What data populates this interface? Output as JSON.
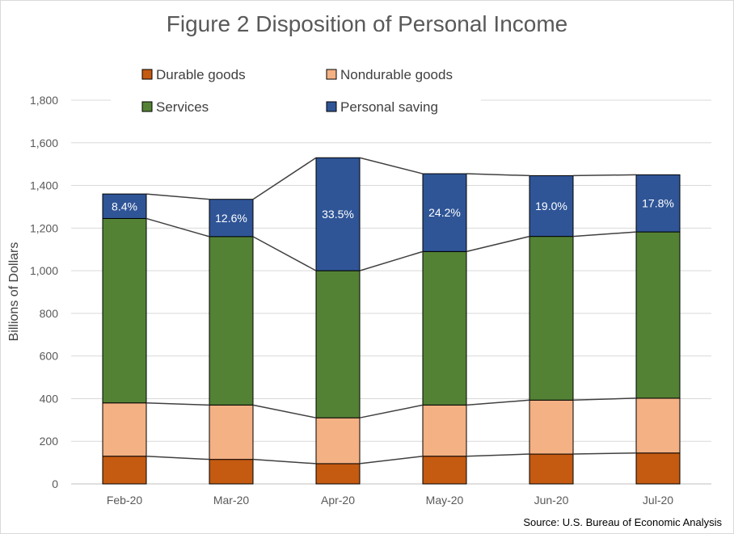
{
  "chart_data": {
    "type": "bar",
    "stacked": true,
    "title": "Figure 2 Disposition of Personal Income",
    "ylabel": "Billions of Dollars",
    "xlabel": "",
    "ylim": [
      0,
      1800
    ],
    "yticks": [
      0,
      200,
      400,
      600,
      800,
      1000,
      1200,
      1400,
      1600,
      1800
    ],
    "ytick_labels": [
      "0",
      "200",
      "400",
      "600",
      "800",
      "1,000",
      "1,200",
      "1,400",
      "1,600",
      "1,800"
    ],
    "categories": [
      "Feb-20",
      "Mar-20",
      "Apr-20",
      "May-20",
      "Jun-20",
      "Jul-20"
    ],
    "series": [
      {
        "name": "Durable goods",
        "color": "#C55A11",
        "values": [
          130,
          115,
          95,
          130,
          140,
          145
        ]
      },
      {
        "name": "Nondurable goods",
        "color": "#F4B183",
        "values": [
          250,
          255,
          215,
          240,
          253,
          257
        ]
      },
      {
        "name": "Services",
        "color": "#548235",
        "values": [
          865,
          790,
          690,
          720,
          768,
          780
        ]
      },
      {
        "name": "Personal saving",
        "color": "#2F5597",
        "values": [
          115,
          175,
          530,
          365,
          285,
          268
        ]
      }
    ],
    "saving_rate_labels": [
      "8.4%",
      "12.6%",
      "33.5%",
      "24.2%",
      "19.0%",
      "17.8%"
    ],
    "legend_position": "top",
    "grid": true,
    "series_lines": true,
    "source": "Source: U.S. Bureau of Economic Analysis"
  }
}
